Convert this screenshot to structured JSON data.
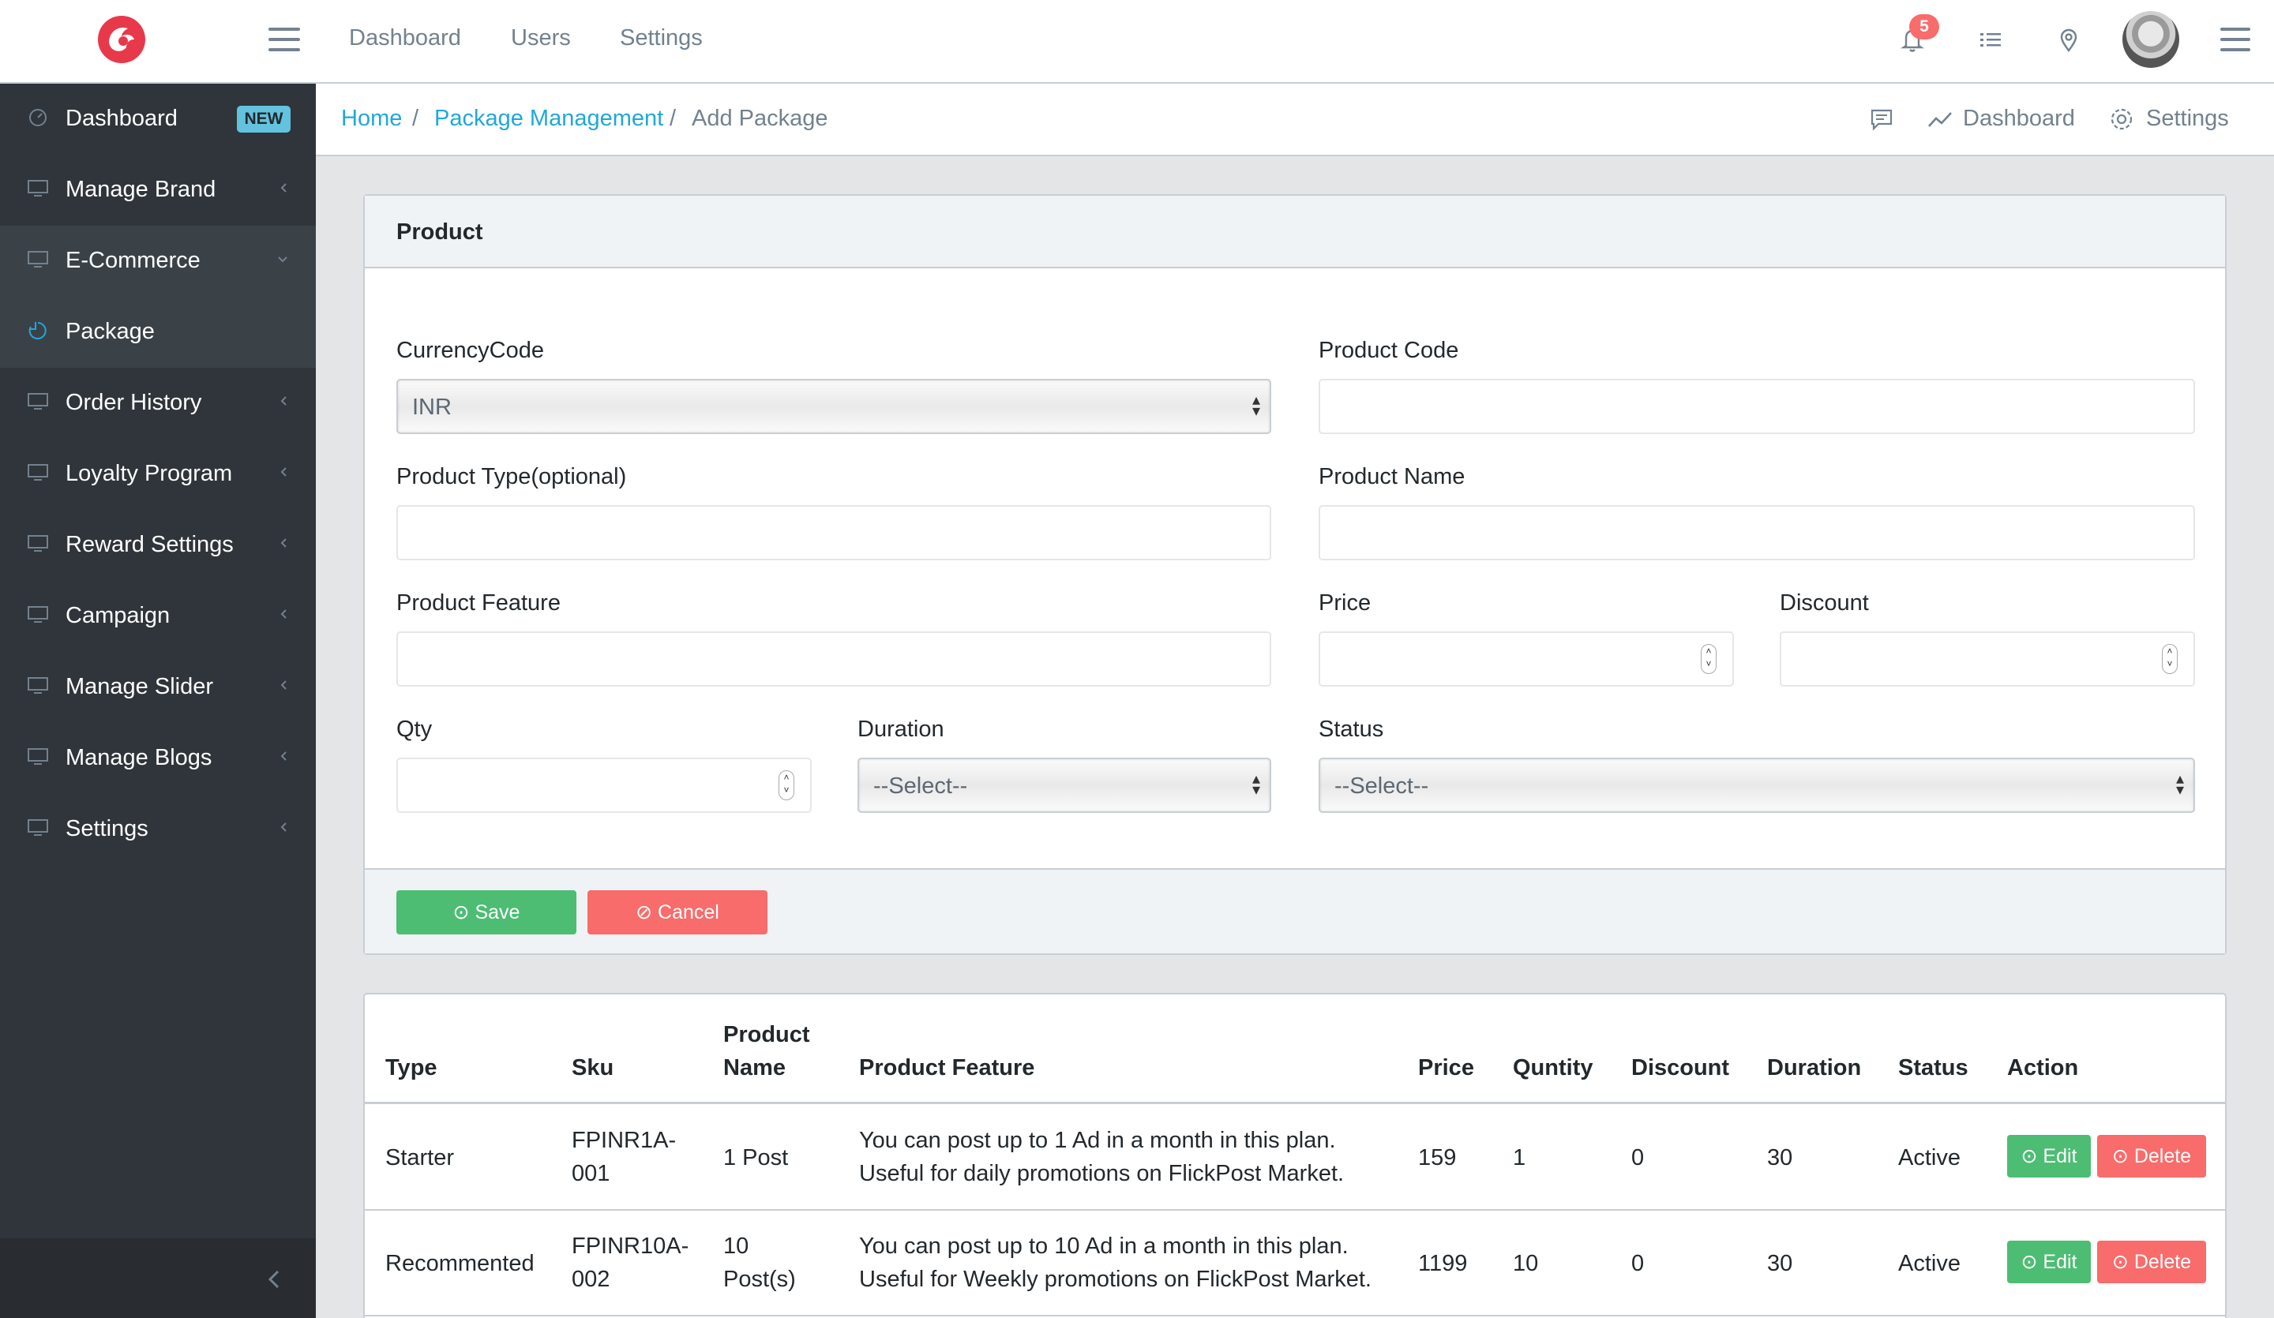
{
  "topbar": {
    "nav": [
      "Dashboard",
      "Users",
      "Settings"
    ],
    "notifications_count": "5",
    "icons": [
      "bell-icon",
      "list-icon",
      "location-pin-icon",
      "menu-icon"
    ]
  },
  "sidebar": {
    "items": [
      {
        "label": "Dashboard",
        "badge": "NEW",
        "icon": "speedometer-icon"
      },
      {
        "label": "Manage Brand",
        "icon": "monitor-icon"
      },
      {
        "label": "E-Commerce",
        "icon": "monitor-icon",
        "state": "open"
      },
      {
        "label": "Package",
        "icon": "pie-icon",
        "state": "active"
      },
      {
        "label": "Order History",
        "icon": "monitor-icon"
      },
      {
        "label": "Loyalty Program",
        "icon": "monitor-icon"
      },
      {
        "label": "Reward Settings",
        "icon": "monitor-icon"
      },
      {
        "label": "Campaign",
        "icon": "monitor-icon"
      },
      {
        "label": "Manage Slider",
        "icon": "monitor-icon"
      },
      {
        "label": "Manage Blogs",
        "icon": "monitor-icon"
      },
      {
        "label": "Settings",
        "icon": "monitor-icon"
      }
    ]
  },
  "breadcrumb": {
    "items": [
      "Home",
      "Package Management",
      "Add Package"
    ],
    "sep": "/",
    "right": {
      "dashboard": "Dashboard",
      "settings": "Settings"
    }
  },
  "form": {
    "title": "Product",
    "currency_label": "CurrencyCode",
    "currency_value": "INR",
    "product_code_label": "Product Code",
    "product_type_label": "Product Type(optional)",
    "product_name_label": "Product Name",
    "product_feature_label": "Product Feature",
    "price_label": "Price",
    "discount_label": "Discount",
    "qty_label": "Qty",
    "duration_label": "Duration",
    "duration_value": "--Select--",
    "status_label": "Status",
    "status_value": "--Select--",
    "save_label": "Save",
    "cancel_label": "Cancel"
  },
  "table": {
    "headers": {
      "type": "Type",
      "sku": "Sku",
      "name_1": "Product",
      "name_2": "Name",
      "feature": "Product Feature",
      "price": "Price",
      "qty": "Quntity",
      "discount": "Discount",
      "duration": "Duration",
      "status": "Status",
      "action": "Action"
    },
    "rows": [
      {
        "type": "Starter",
        "sku_1": "FPINR1A-",
        "sku_2": "001",
        "name_1": "1 Post",
        "name_2": "",
        "feature_1": "You can post up to 1 Ad in a month in this plan.",
        "feature_2": "Useful for daily promotions on FlickPost Market.",
        "price": "159",
        "qty": "1",
        "discount": "0",
        "duration": "30",
        "status": "Active",
        "edit": "Edit",
        "delete": "Delete"
      },
      {
        "type": "Recommented",
        "sku_1": "FPINR10A-",
        "sku_2": "002",
        "name_1": "10",
        "name_2": "Post(s)",
        "feature_1": "You can post up to 10 Ad in a month in this plan.",
        "feature_2": "Useful for Weekly promotions on FlickPost Market.",
        "price": "1199",
        "qty": "10",
        "discount": "0",
        "duration": "30",
        "status": "Active",
        "edit": "Edit",
        "delete": "Delete"
      }
    ]
  }
}
